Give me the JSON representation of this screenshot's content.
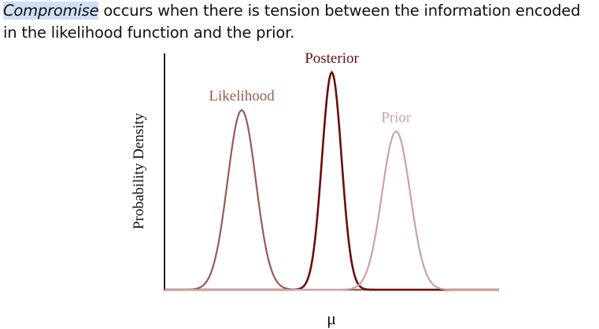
{
  "caption": {
    "term": "Compromise",
    "text_line1": " occurs when there is tension between the information encoded",
    "text_line2": "in the likelihood function and the prior."
  },
  "colors": {
    "likelihood": "#9a5a55",
    "posterior": "#6b0d0e",
    "prior": "#c9a3a2",
    "axis": "#222222",
    "highlight": "#cfe0f7"
  },
  "chart_data": {
    "type": "line",
    "xlabel": "μ",
    "ylabel": "Probability Density",
    "grid": false,
    "legend": "none",
    "series": [
      {
        "name": "Likelihood",
        "mean": 3.0,
        "sd": 0.55,
        "peak": 0.76
      },
      {
        "name": "Posterior",
        "mean": 6.5,
        "sd": 0.38,
        "peak": 0.92
      },
      {
        "name": "Prior",
        "mean": 9.0,
        "sd": 0.55,
        "peak": 0.67
      }
    ],
    "xlim": [
      0,
      13
    ],
    "ylim": [
      0,
      1
    ]
  }
}
